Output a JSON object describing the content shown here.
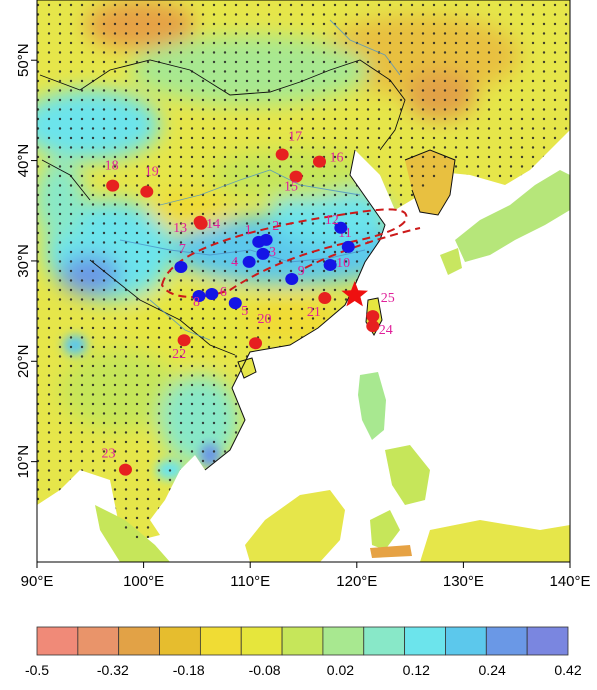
{
  "map": {
    "lon_ticks": [
      "90°E",
      "100°E",
      "110°E",
      "120°E",
      "130°E",
      "140°E"
    ],
    "lat_ticks": [
      "10°N",
      "20°N",
      "30°N",
      "40°N",
      "50°N"
    ],
    "lon_range": [
      90,
      140
    ],
    "lat_range": [
      0,
      56
    ],
    "stippling": true
  },
  "colorbar": {
    "labels": [
      "-0.5",
      "-0.32",
      "-0.18",
      "-0.08",
      "0.02",
      "0.12",
      "0.24",
      "0.42"
    ],
    "colors": [
      "#f08a78",
      "#e9946a",
      "#e2a246",
      "#e6bd2e",
      "#f0dc34",
      "#e6e63c",
      "#c6e65a",
      "#a8e890",
      "#88e8c8",
      "#6ce4ec",
      "#5cc8ec",
      "#6a98e6",
      "#7a86e0"
    ]
  },
  "sites": [
    {
      "id": "1",
      "lon": 110.8,
      "lat": 31.9,
      "color": "blue"
    },
    {
      "id": "2",
      "lon": 111.5,
      "lat": 32.1,
      "color": "blue"
    },
    {
      "id": "3",
      "lon": 111.2,
      "lat": 30.7,
      "color": "blue"
    },
    {
      "id": "4",
      "lon": 109.9,
      "lat": 29.9,
      "color": "blue"
    },
    {
      "id": "5",
      "lon": 108.6,
      "lat": 25.8,
      "color": "blue"
    },
    {
      "id": "6",
      "lon": 106.4,
      "lat": 26.7,
      "color": "blue"
    },
    {
      "id": "7",
      "lon": 103.5,
      "lat": 29.4,
      "color": "blue"
    },
    {
      "id": "8",
      "lon": 105.2,
      "lat": 26.5,
      "color": "blue"
    },
    {
      "id": "9",
      "lon": 113.9,
      "lat": 28.2,
      "color": "blue"
    },
    {
      "id": "10",
      "lon": 117.5,
      "lat": 29.6,
      "color": "blue"
    },
    {
      "id": "11",
      "lon": 119.2,
      "lat": 31.4,
      "color": "blue"
    },
    {
      "id": "12",
      "lon": 118.5,
      "lat": 33.3,
      "color": "blue"
    },
    {
      "id": "13",
      "lon": 105.4,
      "lat": 33.7,
      "color": "red"
    },
    {
      "id": "14",
      "lon": 105.3,
      "lat": 33.9,
      "color": "red"
    },
    {
      "id": "15",
      "lon": 114.3,
      "lat": 38.4,
      "color": "red"
    },
    {
      "id": "16",
      "lon": 116.5,
      "lat": 39.9,
      "color": "red"
    },
    {
      "id": "17",
      "lon": 113.0,
      "lat": 40.6,
      "color": "red"
    },
    {
      "id": "18",
      "lon": 97.1,
      "lat": 37.5,
      "color": "red"
    },
    {
      "id": "19",
      "lon": 100.3,
      "lat": 36.9,
      "color": "red"
    },
    {
      "id": "20",
      "lon": 110.5,
      "lat": 21.8,
      "color": "red"
    },
    {
      "id": "21",
      "lon": 117.0,
      "lat": 26.3,
      "color": "red"
    },
    {
      "id": "22",
      "lon": 103.8,
      "lat": 22.1,
      "color": "red"
    },
    {
      "id": "23",
      "lon": 98.3,
      "lat": 9.2,
      "color": "red"
    },
    {
      "id": "24",
      "lon": 121.5,
      "lat": 23.5,
      "color": "red"
    },
    {
      "id": "25",
      "lon": 121.5,
      "lat": 24.5,
      "color": "red"
    }
  ],
  "star": {
    "lon": 119.8,
    "lat": 26.6
  }
}
